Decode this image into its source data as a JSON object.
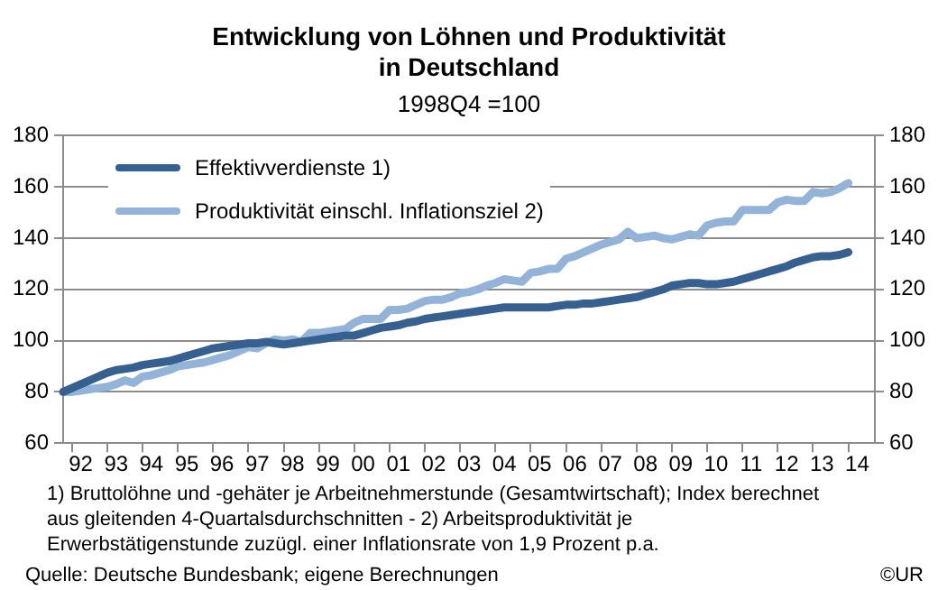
{
  "chart_data": {
    "type": "line",
    "title": "Entwicklung von Löhnen und Produktivität\nin Deutschland",
    "subtitle": "1998Q4 =100",
    "categories": [
      null,
      null,
      "92",
      null,
      null,
      null,
      "93",
      null,
      null,
      null,
      "94",
      null,
      null,
      null,
      "95",
      null,
      null,
      null,
      "96",
      null,
      null,
      null,
      "97",
      null,
      null,
      null,
      "98",
      null,
      null,
      null,
      "99",
      null,
      null,
      null,
      "00",
      null,
      null,
      null,
      "01",
      null,
      null,
      null,
      "02",
      null,
      null,
      null,
      "03",
      null,
      null,
      null,
      "04",
      null,
      null,
      null,
      "05",
      null,
      null,
      null,
      "06",
      null,
      null,
      null,
      "07",
      null,
      null,
      null,
      "08",
      null,
      null,
      null,
      "09",
      null,
      null,
      null,
      "10",
      null,
      null,
      null,
      "11",
      null,
      null,
      null,
      "12",
      null,
      null,
      null,
      "13",
      null,
      null,
      null,
      "14",
      null,
      null
    ],
    "ylim": [
      60,
      180
    ],
    "yticks": [
      60,
      80,
      100,
      120,
      140,
      160,
      180
    ],
    "y2lim": [
      60,
      180
    ],
    "y2ticks": [
      60,
      80,
      100,
      120,
      140,
      160,
      180
    ],
    "grid": "y",
    "legend": "top left",
    "marker": "none",
    "line_style": "solid",
    "series": [
      {
        "name": "Effektivverdienste 1)",
        "color": "#35608f",
        "values": [
          80,
          81.5,
          83,
          84.5,
          86,
          87.5,
          88.5,
          89,
          89.5,
          90.5,
          91,
          91.5,
          92,
          93,
          94,
          95,
          96,
          97,
          97.5,
          98,
          98.5,
          99,
          99,
          99.5,
          99,
          98.5,
          99,
          99.5,
          100,
          100.5,
          101,
          101.5,
          102,
          102,
          103,
          104,
          105,
          105.5,
          106,
          107,
          107.5,
          108.5,
          109,
          109.5,
          110,
          110.5,
          111,
          111.5,
          112,
          112.5,
          113,
          113,
          113,
          113,
          113,
          113,
          113.5,
          114,
          114,
          114.5,
          114.5,
          115,
          115.5,
          116,
          116.5,
          117,
          118,
          119,
          120,
          121.5,
          122,
          122.5,
          122.5,
          122,
          122,
          122.5,
          123,
          124,
          125,
          126,
          127,
          128,
          129,
          130.5,
          131.5,
          132.5,
          133,
          133,
          133.5,
          134.5,
          null,
          null,
          null
        ]
      },
      {
        "name": "Produktivität einschl. Inflationsziel 2)",
        "color": "#94b3d8",
        "values": [
          80,
          80,
          80.5,
          81,
          81.5,
          82,
          83,
          84.5,
          83.5,
          86,
          86.5,
          87.5,
          88.5,
          90,
          90.5,
          91,
          91.5,
          92.5,
          93.5,
          94.5,
          96,
          97.5,
          97,
          99,
          100.5,
          100,
          100.5,
          99.5,
          103,
          103,
          103.5,
          104,
          104.5,
          107,
          108.5,
          108.5,
          108.5,
          112,
          112,
          112.5,
          114,
          115.5,
          116,
          116,
          117,
          118.5,
          119,
          120,
          121.5,
          122.5,
          124,
          123.5,
          123,
          126.5,
          127,
          128,
          128,
          132,
          133,
          134.5,
          136,
          137.5,
          138.5,
          139.5,
          142.5,
          140,
          140.5,
          141,
          140,
          139.5,
          140.5,
          141.5,
          141,
          145,
          146,
          146.5,
          146.5,
          151,
          151,
          151,
          151,
          154,
          155,
          154.5,
          154.5,
          158,
          157.5,
          158,
          159.5,
          161.5,
          null,
          null,
          null
        ]
      }
    ],
    "annotations": [
      "1) Bruttolöhne und -gehäter je Arbeitnehmerstunde (Gesamtwirtschaft); Index berechnet aus gleitenden 4-Quartalsdurchschnitten -  2) Arbeitsproduktivität je Erwerbstätigenstunde zuzügl. einer Inflationsrate von 1,9 Prozent p.a.",
      "Quelle: Deutsche Bundesbank; eigene Berechnungen",
      "©UR"
    ]
  }
}
